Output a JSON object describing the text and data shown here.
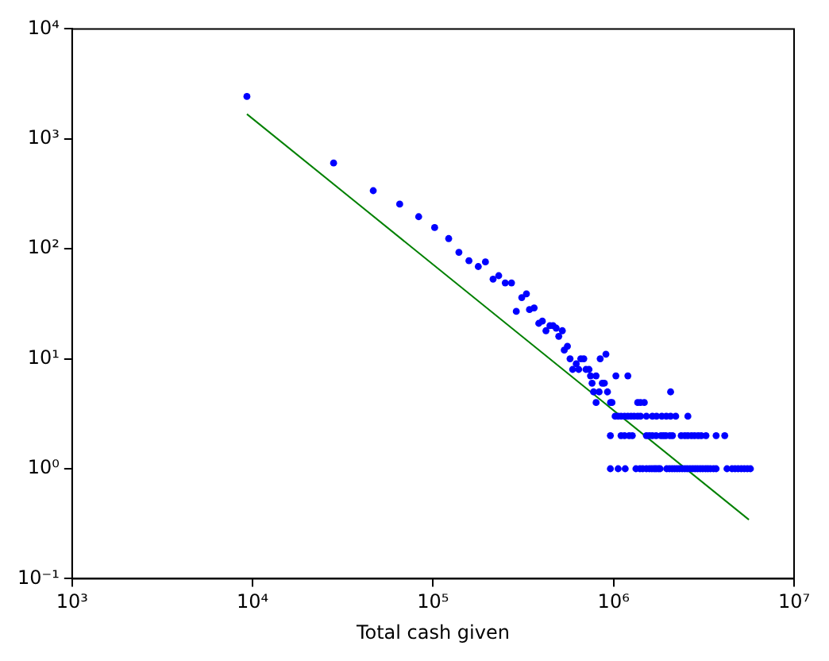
{
  "chart_data": {
    "type": "scatter",
    "xlabel": "Total cash given",
    "log": "xy",
    "grid": false,
    "legend": false,
    "xlim": [
      1000,
      10000000
    ],
    "ylim": [
      0.1,
      10000
    ],
    "xticks": [
      {
        "value": 1000,
        "label": "10³"
      },
      {
        "value": 10000,
        "label": "10⁴"
      },
      {
        "value": 100000,
        "label": "10⁵"
      },
      {
        "value": 1000000,
        "label": "10⁶"
      },
      {
        "value": 10000000,
        "label": "10⁷"
      }
    ],
    "yticks": [
      {
        "value": 0.1,
        "label": "10⁻¹"
      },
      {
        "value": 1,
        "label": "10⁰"
      },
      {
        "value": 10,
        "label": "10¹"
      },
      {
        "value": 100,
        "label": "10²"
      },
      {
        "value": 1000,
        "label": "10³"
      },
      {
        "value": 10000,
        "label": "10⁴"
      }
    ],
    "series": [
      {
        "type": "scatter",
        "color": "#0000ff",
        "marker": "circle",
        "x": [
          9300,
          28100,
          46600,
          65300,
          83200,
          102000,
          122000,
          139000,
          158000,
          178000,
          195000,
          215000,
          231000,
          251000,
          272000,
          289000,
          310000,
          329000,
          342000,
          363000,
          385000,
          403000,
          422000,
          444000,
          462000,
          481000,
          497000,
          520000,
          533000,
          555000,
          574000,
          593000,
          621000,
          641000,
          658000,
          684000,
          703000,
          731000,
          745000,
          760000,
          775000,
          800000,
          800000,
          832000,
          843000,
          866000,
          889000,
          907000,
          925000,
          962000,
          980000,
          1030000,
          1200000,
          2070000,
          1360000,
          1410000,
          1480000,
          1020000,
          1060000,
          1100000,
          1150000,
          1200000,
          1250000,
          1300000,
          1360000,
          1410000,
          1520000,
          1640000,
          1730000,
          1850000,
          1960000,
          2070000,
          2210000,
          2580000,
          960000,
          1100000,
          1150000,
          1220000,
          1270000,
          1520000,
          1580000,
          1640000,
          1720000,
          1830000,
          1890000,
          1950000,
          2050000,
          2120000,
          2370000,
          2480000,
          2580000,
          2700000,
          2810000,
          2940000,
          3060000,
          3250000,
          3700000,
          4130000,
          960000,
          1060000,
          1160000,
          1330000,
          1400000,
          1450000,
          1520000,
          1580000,
          1630000,
          1680000,
          1720000,
          1770000,
          1810000,
          1970000,
          2040000,
          2110000,
          2180000,
          2250000,
          2320000,
          2400000,
          2480000,
          2560000,
          2650000,
          2740000,
          2830000,
          2920000,
          3020000,
          3120000,
          3230000,
          3330000,
          3440000,
          3580000,
          3700000,
          4250000,
          4530000,
          4710000,
          4900000,
          5100000,
          5300000,
          5510000,
          5730000
        ],
        "values": [
          2430,
          603,
          338,
          255,
          196,
          156,
          124,
          93,
          78,
          69,
          76,
          53,
          57,
          49,
          49,
          27,
          36,
          39,
          28,
          29,
          21,
          22,
          18,
          20,
          20,
          19,
          16,
          18,
          12,
          13,
          10,
          8,
          9,
          8,
          10,
          10,
          8,
          8,
          7,
          6,
          5,
          7,
          4,
          5,
          10,
          6,
          6,
          11,
          5,
          4,
          4,
          7,
          7,
          5,
          4,
          4,
          4,
          3,
          3,
          3,
          3,
          3,
          3,
          3,
          3,
          3,
          3,
          3,
          3,
          3,
          3,
          3,
          3,
          3,
          2,
          2,
          2,
          2,
          2,
          2,
          2,
          2,
          2,
          2,
          2,
          2,
          2,
          2,
          2,
          2,
          2,
          2,
          2,
          2,
          2,
          2,
          2,
          2,
          1,
          1,
          1,
          1,
          1,
          1,
          1,
          1,
          1,
          1,
          1,
          1,
          1,
          1,
          1,
          1,
          1,
          1,
          1,
          1,
          1,
          1,
          1,
          1,
          1,
          1,
          1,
          1,
          1,
          1,
          1,
          1,
          1,
          1,
          1,
          1,
          1,
          1,
          1,
          1,
          1
        ]
      },
      {
        "type": "line",
        "color": "#008000",
        "line_style": "solid",
        "marker": "none",
        "x": [
          9300,
          5620000
        ],
        "values": [
          1680,
          0.344
        ]
      }
    ]
  }
}
